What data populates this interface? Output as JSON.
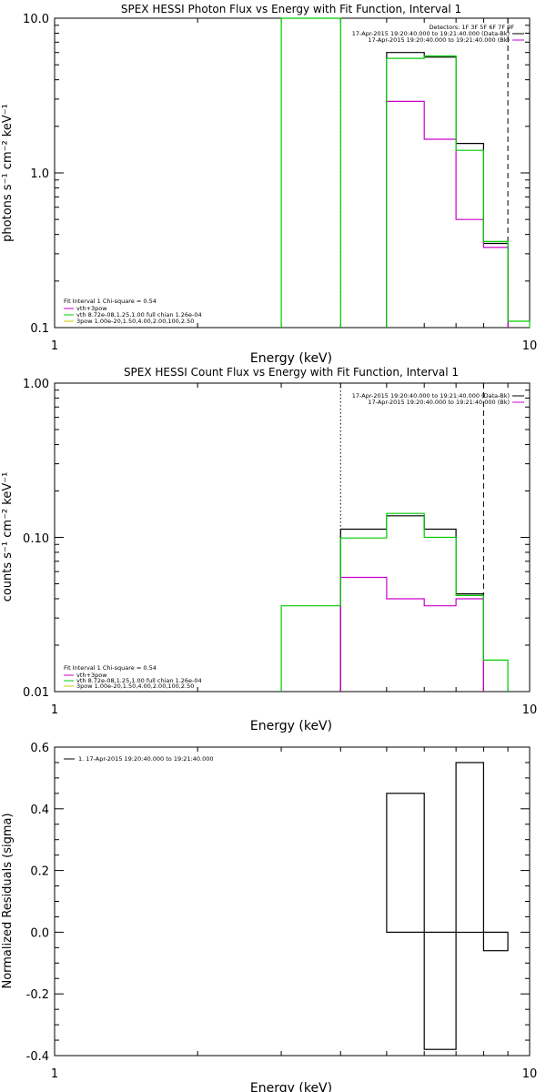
{
  "charts": [
    {
      "title": "SPEX HESSI Photon Flux vs Energy with Fit Function, Interval 1",
      "xlabel": "Energy (keV)",
      "ylabel": "photons s⁻¹ cm⁻² keV⁻¹",
      "x_ticks": [
        "1",
        "10"
      ],
      "y_ticks": [
        "10.0",
        "1.0",
        "0.1"
      ],
      "legend_right": [
        {
          "text": "Detectors: 1F 3F 5F 6F 7F 9F",
          "color": "#000000"
        },
        {
          "text": "17-Apr-2015 19:20:40.000 to 19:21:40.000 (Data-Bk)",
          "color": "#000000"
        },
        {
          "text": "17-Apr-2015 19:20:40.000 to 19:21:40.000 (Bk)",
          "color": "#cc00cc"
        }
      ],
      "legend_left": [
        {
          "text": "Fit Interval  1    Chi-square = 0.54",
          "color": "#000000"
        },
        {
          "text": "vth+3pow",
          "color": "#cc00cc"
        },
        {
          "text": "vth 8.72e-08,1.25,1.00  full chian 1.26e-04",
          "color": "#00cc00"
        },
        {
          "text": "3pow 1.00e-20,1.50,4.00,2.00,100,2.50",
          "color": "#cccc00"
        }
      ]
    },
    {
      "title": "SPEX HESSI Count Flux vs Energy with Fit Function, Interval 1",
      "xlabel": "Energy (keV)",
      "ylabel": "counts s⁻¹ cm⁻² keV⁻¹",
      "x_ticks": [
        "1",
        "10"
      ],
      "y_ticks": [
        "1.00",
        "0.10",
        "0.01"
      ],
      "legend_right": [
        {
          "text": "17-Apr-2015 19:20:40.000 to 19:21:40.000 (Data-Bk)",
          "color": "#000000"
        },
        {
          "text": "17-Apr-2015 19:20:40.000 to 19:21:40.000 (Bk)",
          "color": "#cc00cc"
        }
      ],
      "legend_left": [
        {
          "text": "Fit Interval  1    Chi-square = 0.54",
          "color": "#000000"
        },
        {
          "text": "vth+3pow",
          "color": "#cc00cc"
        },
        {
          "text": "vth 8.72e-08,1.25,1.00  full chian 1.26e-04",
          "color": "#00cc00"
        },
        {
          "text": "3pow 1.00e-20,1.50,4.00,2.00,100,2.50",
          "color": "#cccc00"
        }
      ]
    },
    {
      "title": "",
      "xlabel": "Energy (keV)",
      "ylabel": "Normalized Residuals (sigma)",
      "x_ticks": [
        "1",
        "10"
      ],
      "y_ticks": [
        "0.6",
        "0.4",
        "0.2",
        "0.0",
        "-0.2",
        "-0.4"
      ],
      "legend_left": [
        {
          "text": "1. 17-Apr-2015 19:20:40.000 to 19:21:40.000",
          "color": "#000000"
        }
      ]
    }
  ],
  "chart_data": [
    {
      "type": "line",
      "title": "SPEX HESSI Photon Flux vs Energy with Fit Function, Interval 1",
      "xlabel": "Energy (keV)",
      "ylabel": "photons s⁻¹ cm⁻² keV⁻¹",
      "xscale": "log",
      "yscale": "log",
      "xlim": [
        1,
        10
      ],
      "ylim": [
        0.1,
        10
      ],
      "energy_bins": [
        [
          3,
          4
        ],
        [
          4,
          5
        ],
        [
          5,
          6
        ],
        [
          6,
          7
        ],
        [
          7,
          8
        ],
        [
          8,
          9
        ],
        [
          9,
          10
        ]
      ],
      "series": [
        {
          "name": "17-Apr-2015 19:20:40.000 to 19:21:40.000 (Data-Bk)",
          "color": "#000000",
          "values": [
            null,
            null,
            6.0,
            5.6,
            1.55,
            0.35,
            null
          ]
        },
        {
          "name": "17-Apr-2015 19:20:40.000 to 19:21:40.000 (Bk)",
          "color": "#cc00cc",
          "values": [
            null,
            null,
            2.9,
            1.65,
            0.5,
            0.33,
            null
          ]
        },
        {
          "name": "vth+3pow",
          "color": "#00cc00",
          "values": [
            10,
            null,
            5.5,
            5.7,
            1.4,
            0.36,
            0.11
          ]
        }
      ],
      "vertical_lines": [
        {
          "x": 3,
          "style": "solid",
          "color": "#00cc00"
        },
        {
          "x": 4,
          "style": "dotted",
          "color": "#00cc00"
        },
        {
          "x": 9,
          "style": "dashed",
          "color": "#000000"
        }
      ]
    },
    {
      "type": "line",
      "title": "SPEX HESSI Count Flux vs Energy with Fit Function, Interval 1",
      "xlabel": "Energy (keV)",
      "ylabel": "counts s⁻¹ cm⁻² keV⁻¹",
      "xscale": "log",
      "yscale": "log",
      "xlim": [
        1,
        10
      ],
      "ylim": [
        0.01,
        1
      ],
      "energy_bins": [
        [
          3,
          4
        ],
        [
          4,
          5
        ],
        [
          5,
          6
        ],
        [
          6,
          7
        ],
        [
          7,
          8
        ],
        [
          8,
          9
        ],
        [
          9,
          10
        ]
      ],
      "series": [
        {
          "name": "17-Apr-2015 19:20:40.000 to 19:21:40.000 (Data-Bk)",
          "color": "#000000",
          "values": [
            null,
            0.113,
            0.138,
            0.113,
            0.043,
            null,
            null
          ]
        },
        {
          "name": "17-Apr-2015 19:20:40.000 to 19:21:40.000 (Bk)",
          "color": "#cc00cc",
          "values": [
            null,
            0.055,
            0.04,
            0.036,
            0.04,
            null,
            null
          ]
        },
        {
          "name": "vth+3pow",
          "color": "#00cc00",
          "values": [
            0.036,
            0.099,
            0.143,
            0.1,
            0.042,
            0.016,
            null
          ]
        }
      ],
      "vertical_lines": [
        {
          "x": 4,
          "style": "dotted",
          "color": "#000000"
        },
        {
          "x": 8,
          "style": "dashed",
          "color": "#000000"
        }
      ]
    },
    {
      "type": "line",
      "title": "",
      "xlabel": "Energy (keV)",
      "ylabel": "Normalized Residuals (sigma)",
      "xscale": "log",
      "yscale": "linear",
      "xlim": [
        1,
        10
      ],
      "ylim": [
        -0.4,
        0.6
      ],
      "energy_bins": [
        [
          5,
          6
        ],
        [
          6,
          7
        ],
        [
          7,
          8
        ],
        [
          8,
          9
        ]
      ],
      "series": [
        {
          "name": "1. 17-Apr-2015 19:20:40.000 to 19:21:40.000",
          "color": "#000000",
          "values": [
            0.45,
            -0.38,
            0.55,
            -0.06
          ]
        }
      ]
    }
  ]
}
